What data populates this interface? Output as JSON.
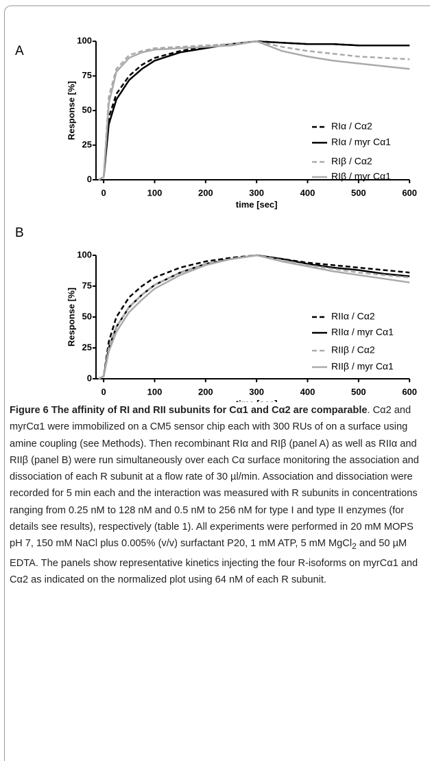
{
  "chart_data": [
    {
      "type": "line",
      "panel": "A",
      "ylabel": "Response [%]",
      "xlabel": "time [sec]",
      "x": [
        -10,
        0,
        10,
        25,
        50,
        75,
        100,
        150,
        200,
        250,
        300,
        350,
        400,
        450,
        500,
        550,
        600
      ],
      "xlim": [
        -15,
        610
      ],
      "ylim": [
        0,
        110
      ],
      "xticks": [
        0,
        100,
        200,
        300,
        400,
        500,
        600
      ],
      "yticks": [
        0,
        25,
        50,
        75,
        100
      ],
      "series": [
        {
          "name": "RIα / Cα2",
          "color": "#000000",
          "linestyle": "dashed",
          "values": [
            0,
            2,
            45,
            62,
            75,
            83,
            88,
            93,
            96,
            98,
            100,
            99,
            98,
            98,
            97,
            97,
            97
          ]
        },
        {
          "name": "RIα / myr Cα1",
          "color": "#000000",
          "linestyle": "solid",
          "values": [
            0,
            2,
            40,
            58,
            72,
            80,
            86,
            92,
            95,
            98,
            100,
            99,
            98,
            98,
            97,
            97,
            97
          ]
        },
        {
          "name": "RIβ / Cα2",
          "color": "#aaaaaa",
          "linestyle": "dashed",
          "values": [
            0,
            2,
            60,
            80,
            90,
            93,
            95,
            96,
            97,
            98,
            100,
            96,
            93,
            91,
            89,
            88,
            87
          ]
        },
        {
          "name": "RIβ / myr Cα1",
          "color": "#aaaaaa",
          "linestyle": "solid",
          "values": [
            0,
            2,
            55,
            78,
            88,
            92,
            94,
            95,
            96,
            97,
            100,
            93,
            89,
            86,
            84,
            82,
            80
          ]
        }
      ]
    },
    {
      "type": "line",
      "panel": "B",
      "ylabel": "Response [%]",
      "xlabel": "time [sec]",
      "x": [
        -10,
        0,
        10,
        25,
        50,
        75,
        100,
        150,
        200,
        250,
        300,
        350,
        400,
        450,
        500,
        550,
        600
      ],
      "xlim": [
        -15,
        610
      ],
      "ylim": [
        0,
        110
      ],
      "xticks": [
        0,
        100,
        200,
        300,
        400,
        500,
        600
      ],
      "yticks": [
        0,
        25,
        50,
        75,
        100
      ],
      "series": [
        {
          "name": "RIIα / Cα2",
          "color": "#000000",
          "linestyle": "dashed",
          "values": [
            0,
            2,
            30,
            50,
            66,
            75,
            82,
            90,
            95,
            98,
            100,
            97,
            94,
            92,
            90,
            88,
            86
          ]
        },
        {
          "name": "RIIα / myr Cα1",
          "color": "#000000",
          "linestyle": "solid",
          "values": [
            0,
            2,
            25,
            42,
            58,
            68,
            76,
            86,
            93,
            97,
            100,
            97,
            93,
            90,
            88,
            85,
            83
          ]
        },
        {
          "name": "RIIβ / Cα2",
          "color": "#aaaaaa",
          "linestyle": "dashed",
          "values": [
            0,
            2,
            25,
            42,
            58,
            68,
            76,
            86,
            93,
            97,
            100,
            96,
            92,
            89,
            86,
            84,
            82
          ]
        },
        {
          "name": "RIIβ / myr Cα1",
          "color": "#aaaaaa",
          "linestyle": "solid",
          "values": [
            0,
            2,
            22,
            38,
            54,
            64,
            73,
            84,
            92,
            97,
            100,
            95,
            91,
            87,
            84,
            81,
            78
          ]
        }
      ]
    }
  ],
  "caption": {
    "title": "Figure 6 The affinity of RI and RII subunits for Cα1 and Cα2 are comparable",
    "body_start": ". Cα2 and myrCα1 were immobilized on a CM5 sensor chip each with 300 RUs of on a surface using amine coupling (see Methods). Then recombinant RIα and RIβ (panel A) as well as RIIα and RIIβ (panel B) were run simultaneously over each Cα surface monitoring the association and dissociation of each R subunit at a flow rate of 30 µl/min. Association and dissociation were recorded for 5 min each and the interaction was measured with R subunits in concentrations ranging from 0.25 nM to 128 nM and 0.5 nM to 256 nM for type I and type II enzymes (for details see results), respectively (table 1). All experiments were performed in 20 mM MOPS pH 7, 150 mM NaCl plus 0.005% (v/v) surfactant P20, 1 mM ATP, 5 mM MgCl",
    "subscript": "2",
    "body_end": " and 50 µM EDTA. The panels show representative kinetics injecting the four R-isoforms on myrCα1 and Cα2 as indicated on the normalized plot using 64 nM of each R subunit."
  }
}
